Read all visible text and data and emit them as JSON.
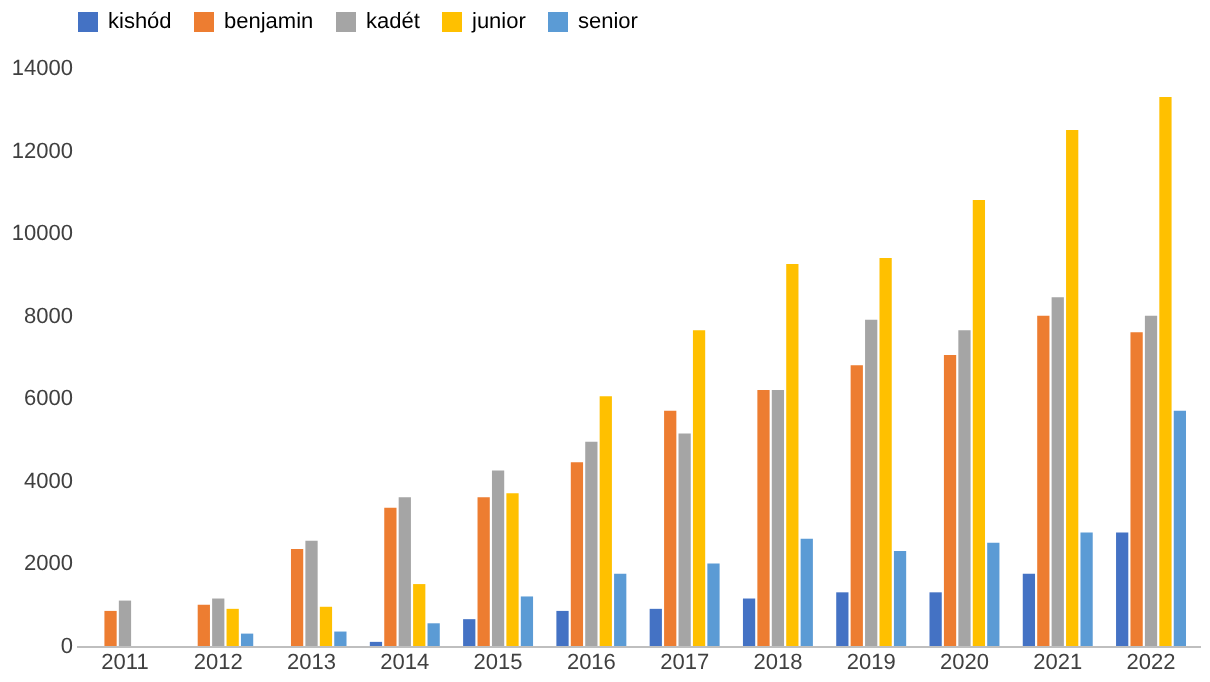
{
  "chart_data": {
    "type": "bar",
    "categories": [
      "2011",
      "2012",
      "2013",
      "2014",
      "2015",
      "2016",
      "2017",
      "2018",
      "2019",
      "2020",
      "2021",
      "2022"
    ],
    "series": [
      {
        "name": "kishód",
        "color": "#4472c4",
        "values": [
          null,
          null,
          null,
          100,
          650,
          850,
          900,
          1150,
          1300,
          1300,
          1750,
          2750
        ]
      },
      {
        "name": "benjamin",
        "color": "#ed7d31",
        "values": [
          850,
          1000,
          2350,
          3350,
          3600,
          4450,
          5700,
          6200,
          6800,
          7050,
          8000,
          7600
        ]
      },
      {
        "name": "kadét",
        "color": "#a5a5a5",
        "values": [
          1100,
          1150,
          2550,
          3600,
          4250,
          4950,
          5150,
          6200,
          7900,
          7650,
          8450,
          8000
        ]
      },
      {
        "name": "junior",
        "color": "#ffc000",
        "values": [
          null,
          900,
          950,
          1500,
          3700,
          6050,
          7650,
          9250,
          9400,
          10800,
          12500,
          13300
        ]
      },
      {
        "name": "senior",
        "color": "#5b9bd5",
        "values": [
          null,
          300,
          350,
          550,
          1200,
          1750,
          2000,
          2600,
          2300,
          2500,
          2750,
          5700
        ]
      }
    ],
    "ylim": [
      0,
      14000
    ],
    "yticks": [
      0,
      2000,
      4000,
      6000,
      8000,
      10000,
      12000,
      14000
    ],
    "grid": false,
    "legend": "top"
  }
}
